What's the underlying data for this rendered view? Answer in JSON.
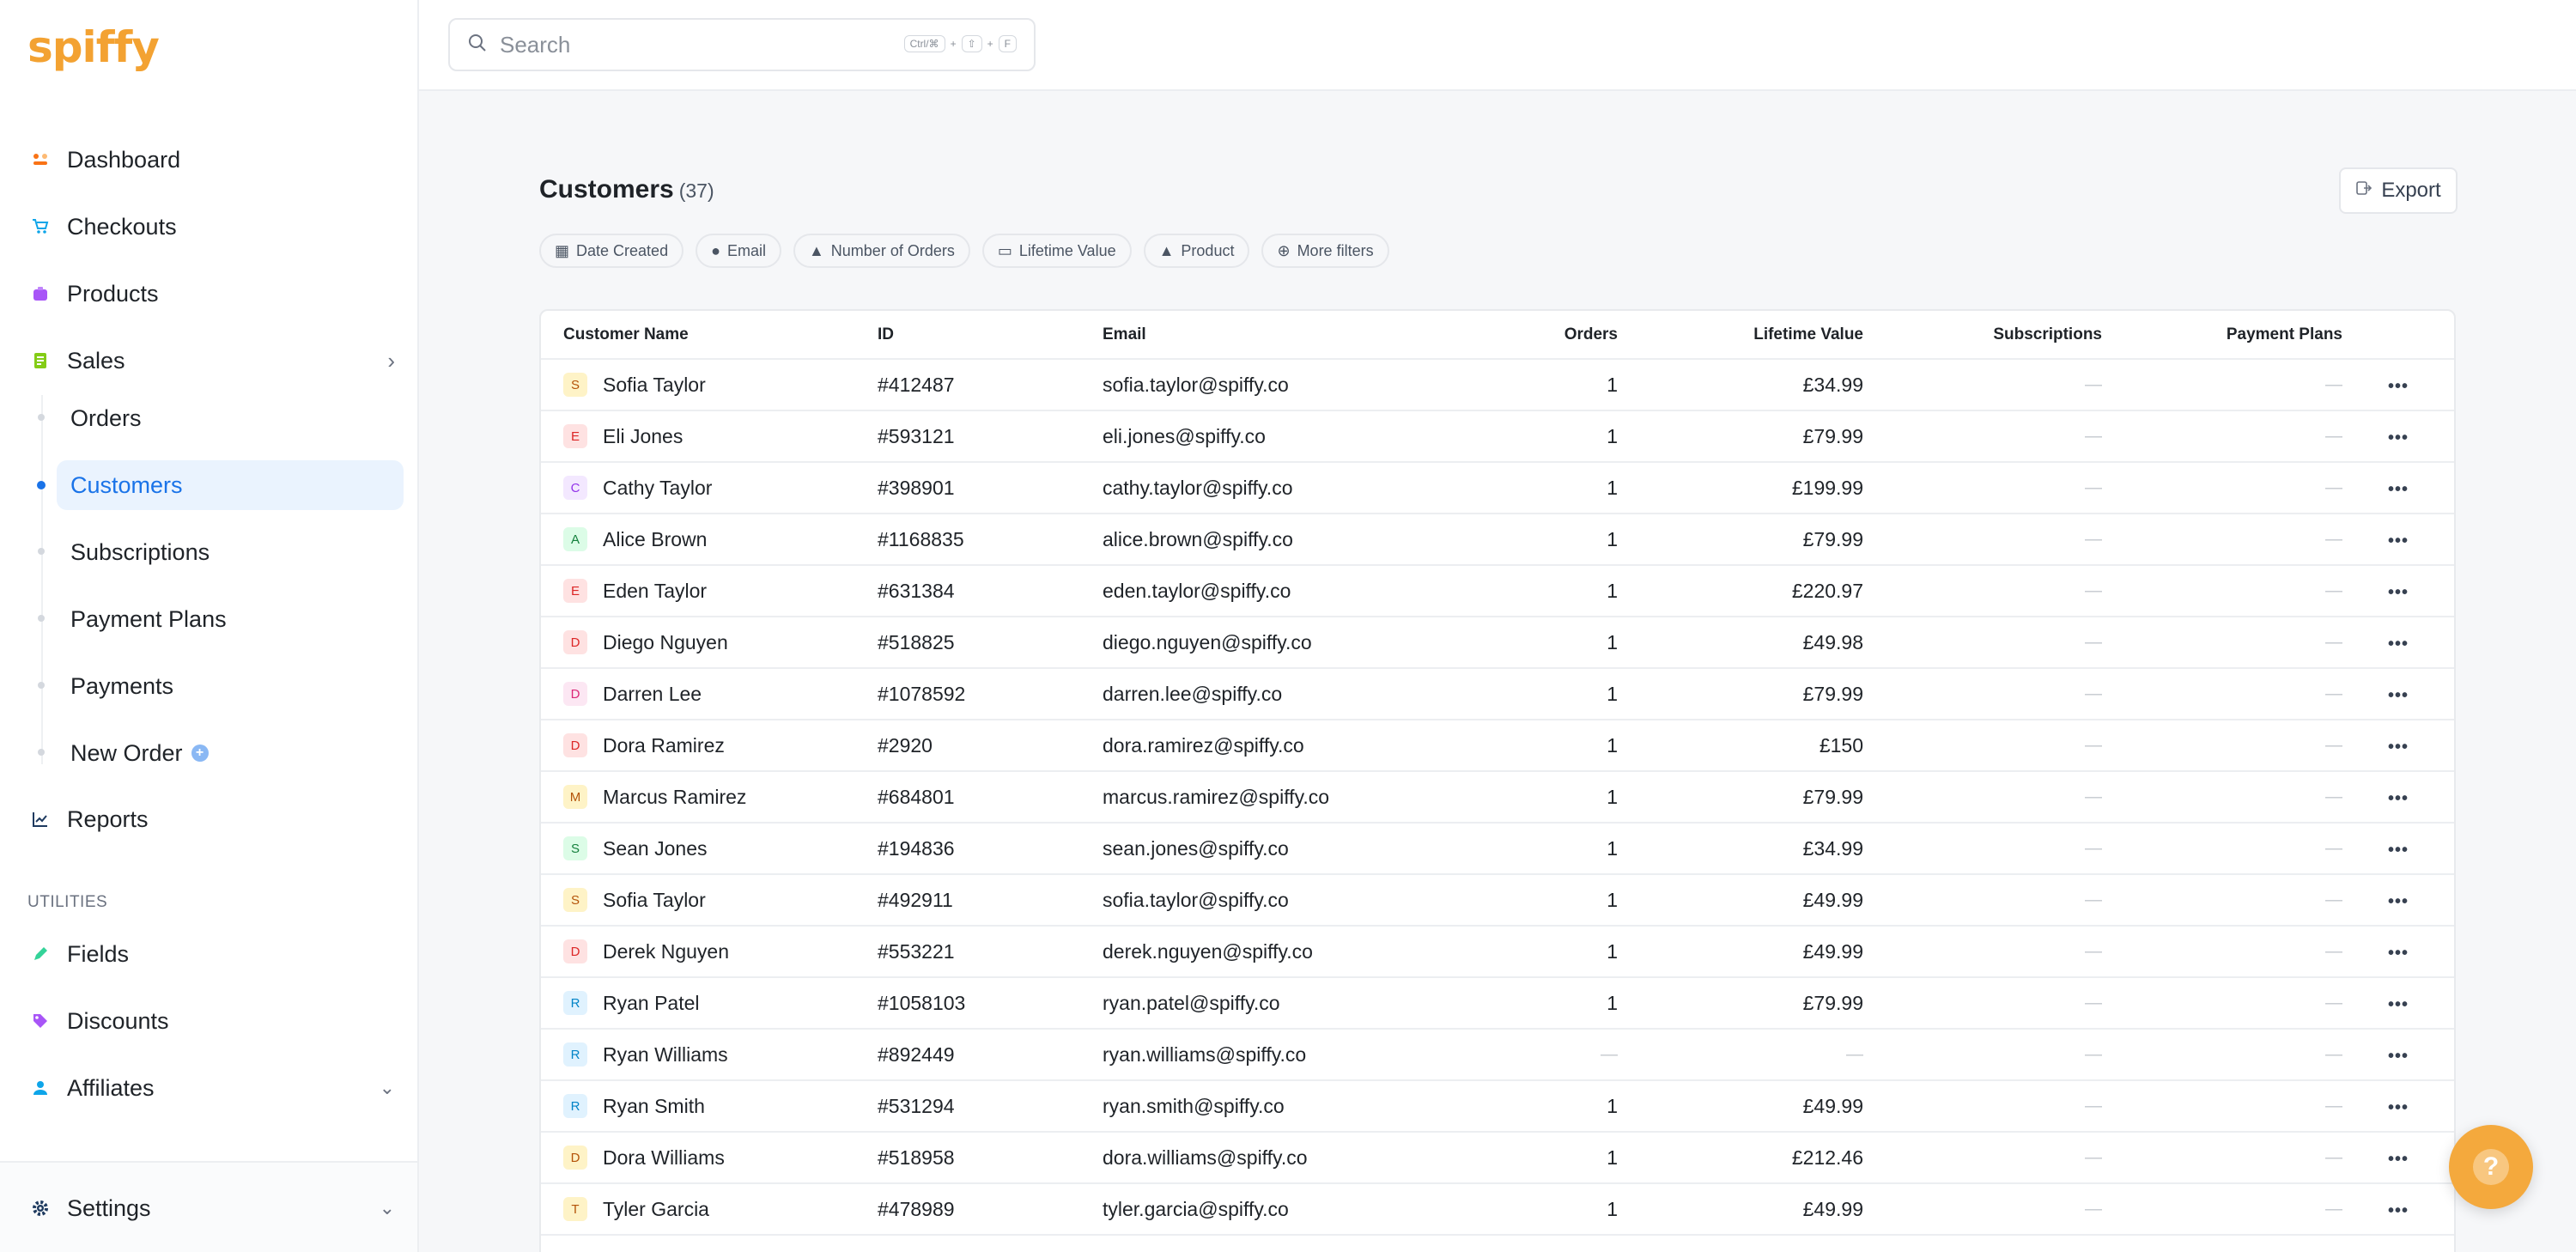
{
  "app": {
    "logo": "spiffy"
  },
  "sidebar": {
    "items": [
      {
        "label": "Dashboard",
        "icon": "dashboard-icon",
        "color": "#f97316"
      },
      {
        "label": "Checkouts",
        "icon": "cart-icon",
        "color": "#0ea5e9"
      },
      {
        "label": "Products",
        "icon": "box-icon",
        "color": "#a855f7"
      },
      {
        "label": "Sales",
        "icon": "receipt-icon",
        "color": "#65a30d"
      }
    ],
    "sales_sub": [
      {
        "label": "Orders"
      },
      {
        "label": "Customers"
      },
      {
        "label": "Subscriptions"
      },
      {
        "label": "Payment Plans"
      },
      {
        "label": "Payments"
      },
      {
        "label": "New Order"
      }
    ],
    "reports": {
      "label": "Reports",
      "icon": "chart-icon"
    },
    "utilities_label": "UTILITIES",
    "utilities": [
      {
        "label": "Fields",
        "icon": "edit-icon",
        "color": "#10b981"
      },
      {
        "label": "Discounts",
        "icon": "tag-icon",
        "color": "#a855f7"
      },
      {
        "label": "Affiliates",
        "icon": "user-icon",
        "color": "#0ea5e9"
      }
    ],
    "settings": {
      "label": "Settings",
      "icon": "gear-icon"
    }
  },
  "search": {
    "placeholder": "Search",
    "shortcut": [
      "Ctrl/⌘",
      "+",
      "⇧",
      "+",
      "F"
    ]
  },
  "page": {
    "title": "Customers",
    "count": "(37)",
    "export_label": "Export"
  },
  "filters": [
    "Date Created",
    "Email",
    "Number of Orders",
    "Lifetime Value",
    "Product",
    "More filters"
  ],
  "table": {
    "columns": [
      "Customer Name",
      "ID",
      "Email",
      "Orders",
      "Lifetime Value",
      "Subscriptions",
      "Payment Plans"
    ],
    "rows": [
      {
        "initial": "S",
        "name": "Sofia Taylor",
        "id": "#412487",
        "email": "sofia.taylor@spiffy.co",
        "orders": "1",
        "ltv": "£34.99",
        "subs": "—",
        "pp": "—",
        "bg": "#fef3c7",
        "fg": "#b45309"
      },
      {
        "initial": "E",
        "name": "Eli Jones",
        "id": "#593121",
        "email": "eli.jones@spiffy.co",
        "orders": "1",
        "ltv": "£79.99",
        "subs": "—",
        "pp": "—",
        "bg": "#fee2e2",
        "fg": "#dc2626"
      },
      {
        "initial": "C",
        "name": "Cathy Taylor",
        "id": "#398901",
        "email": "cathy.taylor@spiffy.co",
        "orders": "1",
        "ltv": "£199.99",
        "subs": "—",
        "pp": "—",
        "bg": "#f3e8ff",
        "fg": "#9333ea"
      },
      {
        "initial": "A",
        "name": "Alice Brown",
        "id": "#1168835",
        "email": "alice.brown@spiffy.co",
        "orders": "1",
        "ltv": "£79.99",
        "subs": "—",
        "pp": "—",
        "bg": "#dcfce7",
        "fg": "#15803d"
      },
      {
        "initial": "E",
        "name": "Eden Taylor",
        "id": "#631384",
        "email": "eden.taylor@spiffy.co",
        "orders": "1",
        "ltv": "£220.97",
        "subs": "—",
        "pp": "—",
        "bg": "#fee2e2",
        "fg": "#dc2626"
      },
      {
        "initial": "D",
        "name": "Diego Nguyen",
        "id": "#518825",
        "email": "diego.nguyen@spiffy.co",
        "orders": "1",
        "ltv": "£49.98",
        "subs": "—",
        "pp": "—",
        "bg": "#fee2e2",
        "fg": "#dc2626"
      },
      {
        "initial": "D",
        "name": "Darren Lee",
        "id": "#1078592",
        "email": "darren.lee@spiffy.co",
        "orders": "1",
        "ltv": "£79.99",
        "subs": "—",
        "pp": "—",
        "bg": "#fce7f3",
        "fg": "#db2777"
      },
      {
        "initial": "D",
        "name": "Dora Ramirez",
        "id": "#2920",
        "email": "dora.ramirez@spiffy.co",
        "orders": "1",
        "ltv": "£150",
        "subs": "—",
        "pp": "—",
        "bg": "#fee2e2",
        "fg": "#dc2626"
      },
      {
        "initial": "M",
        "name": "Marcus Ramirez",
        "id": "#684801",
        "email": "marcus.ramirez@spiffy.co",
        "orders": "1",
        "ltv": "£79.99",
        "subs": "—",
        "pp": "—",
        "bg": "#fef3c7",
        "fg": "#b45309"
      },
      {
        "initial": "S",
        "name": "Sean Jones",
        "id": "#194836",
        "email": "sean.jones@spiffy.co",
        "orders": "1",
        "ltv": "£34.99",
        "subs": "—",
        "pp": "—",
        "bg": "#dcfce7",
        "fg": "#15803d"
      },
      {
        "initial": "S",
        "name": "Sofia Taylor",
        "id": "#492911",
        "email": "sofia.taylor@spiffy.co",
        "orders": "1",
        "ltv": "£49.99",
        "subs": "—",
        "pp": "—",
        "bg": "#fef3c7",
        "fg": "#b45309"
      },
      {
        "initial": "D",
        "name": "Derek Nguyen",
        "id": "#553221",
        "email": "derek.nguyen@spiffy.co",
        "orders": "1",
        "ltv": "£49.99",
        "subs": "—",
        "pp": "—",
        "bg": "#fee2e2",
        "fg": "#dc2626"
      },
      {
        "initial": "R",
        "name": "Ryan Patel",
        "id": "#1058103",
        "email": "ryan.patel@spiffy.co",
        "orders": "1",
        "ltv": "£79.99",
        "subs": "—",
        "pp": "—",
        "bg": "#e0f2fe",
        "fg": "#0284c7"
      },
      {
        "initial": "R",
        "name": "Ryan Williams",
        "id": "#892449",
        "email": "ryan.williams@spiffy.co",
        "orders": "—",
        "ltv": "—",
        "subs": "—",
        "pp": "—",
        "bg": "#e0f2fe",
        "fg": "#0284c7"
      },
      {
        "initial": "R",
        "name": "Ryan Smith",
        "id": "#531294",
        "email": "ryan.smith@spiffy.co",
        "orders": "1",
        "ltv": "£49.99",
        "subs": "—",
        "pp": "—",
        "bg": "#e0f2fe",
        "fg": "#0284c7"
      },
      {
        "initial": "D",
        "name": "Dora Williams",
        "id": "#518958",
        "email": "dora.williams@spiffy.co",
        "orders": "1",
        "ltv": "£212.46",
        "subs": "—",
        "pp": "—",
        "bg": "#fef3c7",
        "fg": "#b45309"
      },
      {
        "initial": "T",
        "name": "Tyler Garcia",
        "id": "#478989",
        "email": "tyler.garcia@spiffy.co",
        "orders": "1",
        "ltv": "£49.99",
        "subs": "—",
        "pp": "—",
        "bg": "#fef3c7",
        "fg": "#b45309"
      }
    ]
  },
  "colors": {
    "accent": "#1a73e8",
    "brand": "#f3a232",
    "help": "#f4a93d"
  }
}
